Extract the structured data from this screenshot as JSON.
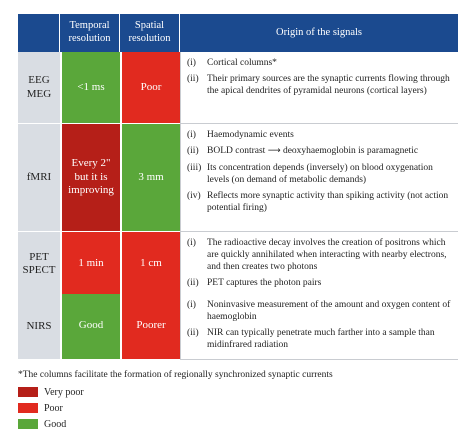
{
  "header": {
    "col1": "",
    "col2_line1": "Temporal",
    "col2_line2": "resolution",
    "col3_line1": "Spatial",
    "col3_line2": "resolution",
    "col4": "Origin of the signals"
  },
  "rows": [
    {
      "label_line1": "EEG",
      "label_line2": "MEG",
      "temporal": "<1 ms",
      "spatial": "Poor",
      "items": [
        {
          "num": "(i)",
          "text": "Cortical columns*"
        },
        {
          "num": "(ii)",
          "text": "Their primary sources are the synaptic currents flowing through the apical dendrites of pyramidal neurons (cortical layers)"
        }
      ]
    },
    {
      "label_line1": "fMRI",
      "label_line2": "",
      "temporal_line1": "Every 2\"",
      "temporal_line2": "but it is",
      "temporal_line3": "improving",
      "spatial": "3 mm",
      "items": [
        {
          "num": "(i)",
          "text": "Haemodynamic events"
        },
        {
          "num": "(ii)",
          "text_a": "BOLD contrast",
          "arrow": "⟶",
          "text_b": "deoxyhaemoglobin is paramagnetic"
        },
        {
          "num": "(iii)",
          "text": "Its concentration depends (inversely) on blood oxygenation levels (on demand of metabolic demands)"
        },
        {
          "num": "(iv)",
          "text": "Reflects more synaptic activity than spiking activity (not action potential firing)"
        }
      ]
    },
    {
      "label_line1": "PET",
      "label_line2": "SPECT",
      "temporal": "1 min",
      "spatial": "1 cm",
      "items": [
        {
          "num": "(i)",
          "text": "The radioactive decay involves the creation of positrons which are quickly annihilated when interacting with nearby electrons, and then creates two photons"
        },
        {
          "num": "(ii)",
          "text": "PET captures the photon pairs"
        }
      ]
    },
    {
      "label_line1": "NIRS",
      "label_line2": "",
      "temporal": "Good",
      "spatial": "Poorer",
      "items": [
        {
          "num": "(i)",
          "text": "Noninvasive measurement of the amount and oxygen content of haemoglobin"
        },
        {
          "num": "(ii)",
          "text": "NIR can typically penetrate much farther into a sample than midinfrared radiation"
        }
      ]
    }
  ],
  "footnote": "*The columns facilitate the formation of regionally synchronized synaptic currents",
  "legend": [
    {
      "label": "Very poor",
      "color": "#b51f18"
    },
    {
      "label": "Poor",
      "color": "#e12a1f"
    },
    {
      "label": "Good",
      "color": "#5aa73a"
    }
  ]
}
